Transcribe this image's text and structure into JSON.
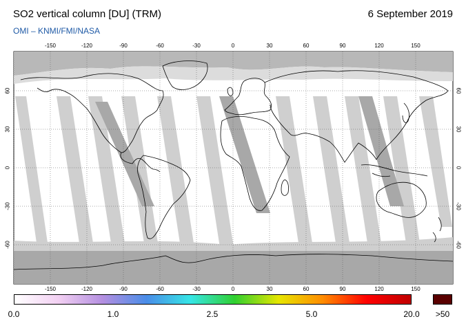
{
  "header": {
    "title": "SO2 vertical column [DU] (TRM)",
    "date": "6 September 2019",
    "credit": "OMI  –  KNMI/FMI/NASA"
  },
  "map": {
    "projection": "equirectangular",
    "lon_ticks": [
      "-150",
      "-120",
      "-90",
      "-60",
      "-30",
      "0",
      "30",
      "60",
      "90",
      "120",
      "150"
    ],
    "lat_ticks": [
      "60",
      "30",
      "0",
      "-30",
      "-60"
    ],
    "colors": {
      "swath": "#ffffff",
      "gap": "#cfcfcf",
      "no_data": "#a8a8a8",
      "coast": "#000000"
    }
  },
  "colorbar": {
    "labels": [
      "0.0",
      "1.0",
      "2.5",
      "5.0",
      "20.0"
    ],
    "over_label": ">50",
    "gradient": [
      "#ffffff",
      "#f2d0f2",
      "#b48fe0",
      "#4a8de8",
      "#36e6e6",
      "#30d030",
      "#e6e600",
      "#ff8c00",
      "#ff0000",
      "#c00000"
    ],
    "over_color": "#5a0000"
  }
}
